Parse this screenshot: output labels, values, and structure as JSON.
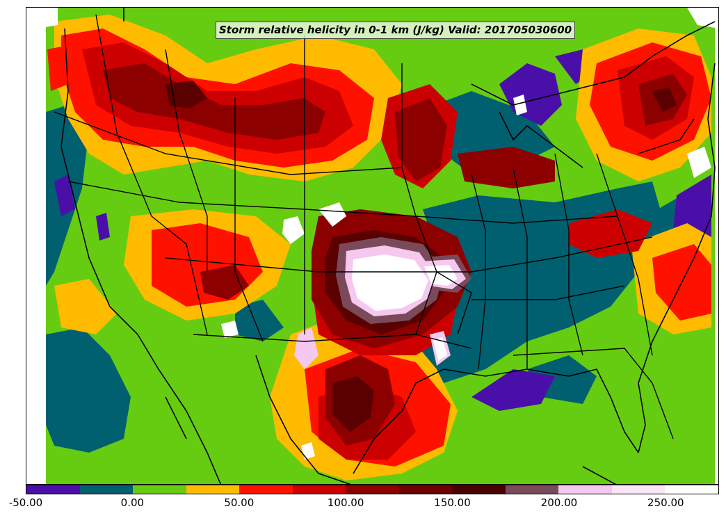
{
  "title": "Storm relative helicity in 0-1 km (J/kg) Valid: 201705030600",
  "palette": {
    "purple": "#4a0fa8",
    "teal": "#006070",
    "green": "#66cc11",
    "yellow": "#ffbb00",
    "red": "#ff1100",
    "crimson": "#cc0000",
    "darkred": "#8c0000",
    "maroon": "#5a0000",
    "mauve": "#7a4a5a",
    "pink": "#f5c8ef",
    "white": "#ffffff"
  },
  "colorbar": {
    "levels": [
      -50,
      -25,
      0,
      25,
      50,
      75,
      100,
      125,
      150,
      175,
      200,
      225,
      250,
      275
    ],
    "colors": [
      "#4a0fa8",
      "#006070",
      "#66cc11",
      "#ffbb00",
      "#ff1100",
      "#cc0000",
      "#8c0000",
      "#6e0000",
      "#4a0000",
      "#7a4a5a",
      "#f5c8ef",
      "#fbe6f8",
      "#ffffff"
    ],
    "tick_labels": [
      "-50.00",
      "0.00",
      "50.00",
      "100.00",
      "150.00",
      "200.00",
      "250.00"
    ]
  }
}
